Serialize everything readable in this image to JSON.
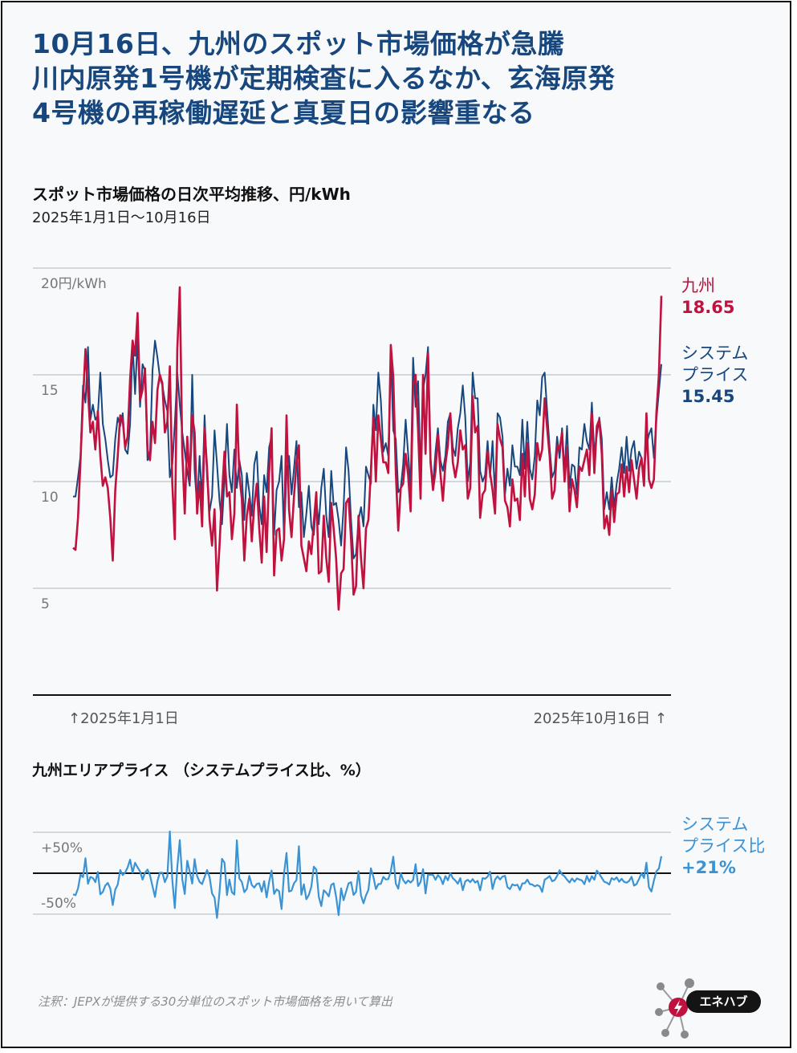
{
  "headline": {
    "line1": "10月16日、九州のスポット市場価格が急騰",
    "line2": "川内原発1号機が定期検査に入るなか、玄海原発",
    "line3": "4号機の再稼働遅延と真夏日の影響重なる"
  },
  "main_chart": {
    "title": "スポット市場価格の日次平均推移、円/kWh",
    "period": "2025年1月1日〜10月16日",
    "start_label": "↑2025年1月1日",
    "end_label": "2025年10月16日 ↑"
  },
  "ratio_chart": {
    "title": "九州エリアプライス （システムプライス比、%）"
  },
  "legend": {
    "kyushu_name": "九州",
    "kyushu_value": "18.65",
    "system_name_line1": "システム",
    "system_name_line2": "プライス",
    "system_value": "15.45",
    "ratio_name_line1": "システム",
    "ratio_name_line2": "プライス比",
    "ratio_value": "+21%"
  },
  "footer": {
    "note": "注釈：JEPXが提供する30分単位のスポット市場価格を用いて算出",
    "logo_text": "エネハブ"
  },
  "colors": {
    "kyushu": "#c0113f",
    "system": "#17477d",
    "ratio": "#3a93d4",
    "headline": "#17477d"
  },
  "chart_data": [
    {
      "type": "line",
      "title": "スポット市場価格の日次平均推移、円/kWh",
      "subtitle": "2025年1月1日〜10月16日",
      "x_start": "2025-01-01",
      "x_end": "2025-10-16",
      "ylim": [
        0,
        20
      ],
      "yticks": [
        "20円/kWh",
        "15",
        "10",
        "5"
      ],
      "grid": true,
      "series": [
        {
          "name": "九州",
          "color": "#c0113f",
          "values": [
            6.9,
            6.8,
            8.3,
            11.0,
            13.8,
            16.2,
            14.2,
            12.3,
            12.8,
            11.5,
            13.3,
            11.2,
            9.8,
            10.2,
            9.7,
            8.3,
            6.3,
            9.6,
            11.2,
            13.1,
            12.9,
            11.6,
            12.1,
            14.8,
            16.6,
            15.9,
            17.9,
            13.8,
            14.3,
            15.3,
            11.5,
            11.0,
            12.8,
            11.8,
            14.3,
            15.0,
            14.6,
            12.3,
            12.8,
            15.4,
            9.9,
            7.3,
            16.2,
            19.1,
            11.4,
            8.5,
            12.1,
            10.0,
            13.1,
            12.3,
            8.5,
            10.0,
            7.9,
            12.5,
            10.6,
            8.2,
            7.0,
            8.7,
            4.9,
            7.0,
            9.4,
            11.4,
            9.3,
            9.5,
            7.3,
            8.5,
            13.6,
            10.3,
            9.2,
            6.3,
            8.4,
            9.2,
            7.2,
            8.9,
            9.9,
            7.8,
            6.2,
            9.3,
            6.7,
            10.4,
            12.5,
            5.6,
            7.7,
            7.8,
            6.3,
            7.3,
            13.1,
            8.7,
            7.4,
            9.3,
            10.9,
            11.7,
            7.0,
            6.4,
            5.8,
            7.2,
            6.6,
            8.1,
            9.5,
            5.7,
            5.8,
            8.4,
            6.4,
            5.3,
            9.0,
            7.8,
            6.4,
            4.0,
            5.7,
            5.9,
            9.0,
            9.2,
            7.3,
            4.7,
            5.1,
            8.4,
            6.4,
            5.0,
            7.8,
            8.2,
            10.5,
            13.0,
            10.0,
            13.1,
            12.0,
            10.9,
            10.9,
            10.4,
            16.4,
            14.9,
            10.5,
            7.7,
            9.7,
            9.9,
            11.3,
            10.3,
            8.6,
            14.5,
            15.0,
            12.4,
            9.2,
            15.0,
            11.3,
            16.0,
            10.9,
            9.6,
            10.5,
            12.2,
            10.4,
            9.1,
            10.8,
            11.7,
            13.2,
            10.9,
            10.2,
            10.9,
            12.4,
            11.5,
            11.7,
            9.2,
            9.7,
            14.0,
            12.3,
            12.6,
            8.3,
            9.4,
            9.6,
            11.4,
            10.4,
            9.6,
            8.5,
            12.7,
            12.0,
            11.6,
            9.1,
            8.8,
            7.9,
            10.1,
            9.1,
            9.2,
            8.2,
            11.3,
            9.3,
            11.8,
            9.2,
            8.7,
            9.4,
            11.8,
            11.0,
            11.5,
            13.9,
            12.5,
            11.2,
            9.2,
            9.6,
            11.7,
            11.5,
            12.3,
            10.0,
            11.6,
            8.6,
            10.1,
            9.6,
            8.8,
            10.7,
            10.5,
            11.0,
            11.5,
            10.3,
            13.2,
            10.4,
            12.6,
            12.9,
            11.3,
            7.8,
            8.4,
            7.5,
            9.6,
            8.1,
            9.4,
            9.5,
            10.8,
            9.3,
            10.7,
            9.5,
            11.0,
            10.1,
            9.2,
            10.6,
            11.1,
            9.8,
            13.2,
            10.1,
            9.7,
            10.1,
            13.2,
            15.0,
            18.7
          ]
        },
        {
          "name": "システムプライス",
          "color": "#17477d",
          "values": [
            9.3,
            9.3,
            10.2,
            11.2,
            14.5,
            13.7,
            16.3,
            12.9,
            13.6,
            12.9,
            13.1,
            15.1,
            12.7,
            12.0,
            11.0,
            10.2,
            10.3,
            12.0,
            13.0,
            12.6,
            13.2,
            11.5,
            11.3,
            12.7,
            16.5,
            14.1,
            16.7,
            13.5,
            15.5,
            15.2,
            11.0,
            11.3,
            15.2,
            16.6,
            15.8,
            14.9,
            14.5,
            13.8,
            13.3,
            10.2,
            10.8,
            12.7,
            15.1,
            13.6,
            12.3,
            11.4,
            10.5,
            9.8,
            15.0,
            10.5,
            8.8,
            11.2,
            9.1,
            13.1,
            10.2,
            8.6,
            9.3,
            12.4,
            10.8,
            9.1,
            8.0,
            10.1,
            12.7,
            10.3,
            9.5,
            11.5,
            9.7,
            11.0,
            10.3,
            8.2,
            10.4,
            9.5,
            8.4,
            10.8,
            11.4,
            8.9,
            8.0,
            10.3,
            9.5,
            11.6,
            12.1,
            7.5,
            9.6,
            10.0,
            11.2,
            7.3,
            10.5,
            11.2,
            9.4,
            10.6,
            11.9,
            8.8,
            9.5,
            7.4,
            8.5,
            9.8,
            7.9,
            7.5,
            9.1,
            8.0,
            9.7,
            10.6,
            8.4,
            7.4,
            10.5,
            8.9,
            9.0,
            8.2,
            7.0,
            8.8,
            11.6,
            10.5,
            8.2,
            6.4,
            6.6,
            8.2,
            8.8,
            7.9,
            10.7,
            10.3,
            9.9,
            13.6,
            12.4,
            15.1,
            13.8,
            11.4,
            11.8,
            11.2,
            16.0,
            12.4,
            12.0,
            9.5,
            9.7,
            10.8,
            12.9,
            11.3,
            9.7,
            15.8,
            13.5,
            14.7,
            10.3,
            14.3,
            15.0,
            16.3,
            11.1,
            9.8,
            11.4,
            12.5,
            11.0,
            10.5,
            11.2,
            12.8,
            13.2,
            11.6,
            11.2,
            12.5,
            13.2,
            14.5,
            13.0,
            10.0,
            10.9,
            15.1,
            13.9,
            13.9,
            10.5,
            10.0,
            10.3,
            11.9,
            10.2,
            11.9,
            9.2,
            13.2,
            13.0,
            12.1,
            9.4,
            10.6,
            9.8,
            11.7,
            10.7,
            10.7,
            10.3,
            12.9,
            10.6,
            12.8,
            10.6,
            10.1,
            11.2,
            13.8,
            13.1,
            14.9,
            15.1,
            13.3,
            11.6,
            10.2,
            10.5,
            12.1,
            11.1,
            12.5,
            10.4,
            12.6,
            9.7,
            10.8,
            10.7,
            9.4,
            11.6,
            11.5,
            12.7,
            11.9,
            11.5,
            13.7,
            11.3,
            12.2,
            13.0,
            12.0,
            8.7,
            9.5,
            8.7,
            10.2,
            8.8,
            9.9,
            10.6,
            11.6,
            10.4,
            12.1,
            10.5,
            11.5,
            11.9,
            10.6,
            11.4,
            11.1,
            10.4,
            11.7,
            12.2,
            12.5,
            11.1,
            12.9,
            14.2,
            15.5
          ]
        }
      ]
    },
    {
      "type": "line",
      "title": "九州エリアプライス （システムプライス比、%）",
      "ylim": [
        -50,
        50
      ],
      "yticks": [
        "+50%",
        "-50%"
      ],
      "series": [
        {
          "name": "システムプライス比",
          "color": "#3a93d4"
        }
      ]
    }
  ]
}
